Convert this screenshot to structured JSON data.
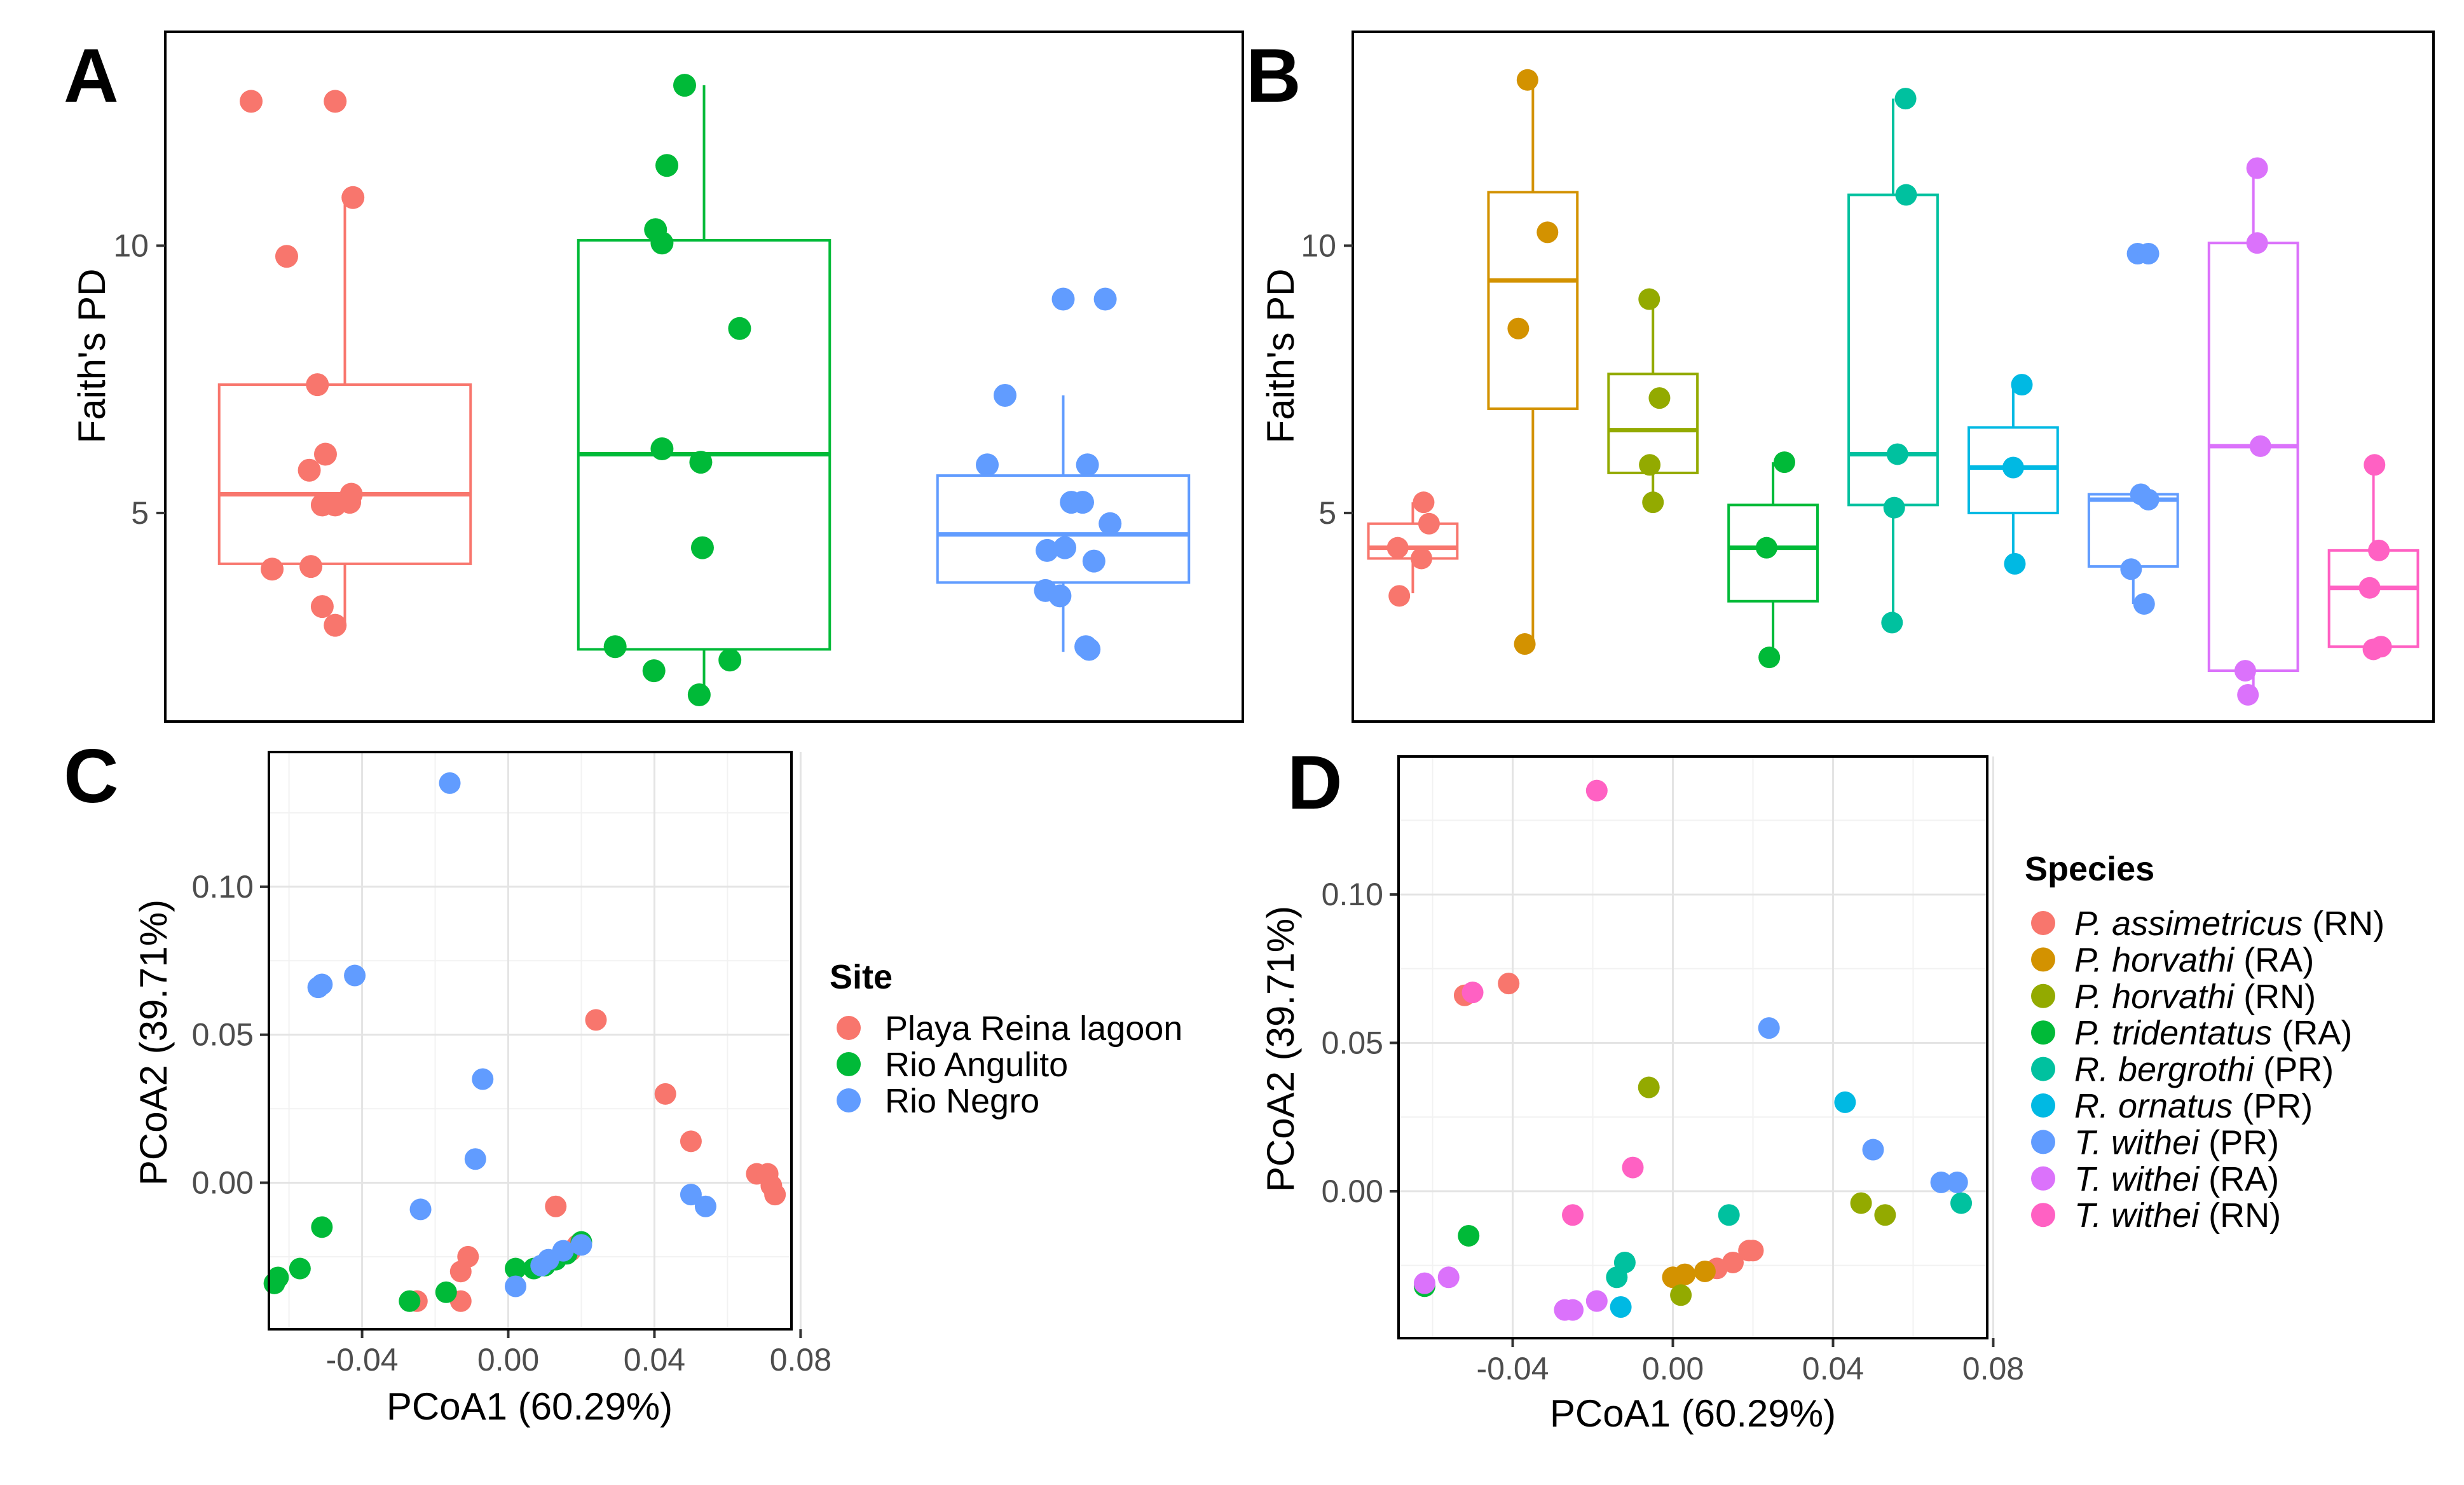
{
  "panels": {
    "a": "A",
    "b": "B",
    "c": "C",
    "d": "D"
  },
  "colors": {
    "site": {
      "Playa Reina lagoon": "#F8766D",
      "Rio Angulito": "#00BA38",
      "Rio Negro": "#619CFF"
    },
    "species": [
      "#F8766D",
      "#D39200",
      "#93AA00",
      "#00BA38",
      "#00C19F",
      "#00B9E3",
      "#619CFF",
      "#DB72FB",
      "#FF61C3"
    ]
  },
  "legends": {
    "site": {
      "title": "Site",
      "items": [
        "Playa Reina lagoon",
        "Rio Angulito",
        "Rio Negro"
      ]
    },
    "species": {
      "title": "Species",
      "items": [
        {
          "name": "P. assimetricus",
          "site": " (RN)"
        },
        {
          "name": "P. horvathi",
          "site": " (RA)"
        },
        {
          "name": "P. horvathi",
          "site": " (RN)"
        },
        {
          "name": "P. tridentatus",
          "site": " (RA)"
        },
        {
          "name": "R. bergrothi",
          "site": " (PR)"
        },
        {
          "name": "R. ornatus",
          "site": " (PR)"
        },
        {
          "name": "T. withei",
          "site": " (PR)"
        },
        {
          "name": "T. withei",
          "site": " (RA)"
        },
        {
          "name": "T. withei",
          "site": " (RN)"
        }
      ]
    }
  },
  "chart_data": [
    {
      "id": "A",
      "type": "box",
      "xlabel": "",
      "ylabel": "Faith's PD",
      "ylim": [
        1.1,
        14.0
      ],
      "yticks": [
        5,
        10
      ],
      "groups": [
        {
          "name": "Playa Reina lagoon",
          "color": "#F8766D",
          "box": {
            "q1": 4.05,
            "median": 5.35,
            "q3": 7.4,
            "wlo": 2.9,
            "whi": 10.9
          },
          "points": [
            [
              -0.58,
              12.7
            ],
            [
              -0.06,
              12.7
            ],
            [
              0.05,
              10.9
            ],
            [
              -0.36,
              9.8
            ],
            [
              -0.17,
              7.4
            ],
            [
              -0.12,
              6.1
            ],
            [
              -0.22,
              5.8
            ],
            [
              0.04,
              5.35
            ],
            [
              -0.14,
              5.15
            ],
            [
              0.03,
              5.2
            ],
            [
              -0.06,
              5.15
            ],
            [
              -0.45,
              3.95
            ],
            [
              -0.21,
              4.0
            ],
            [
              -0.14,
              3.25
            ],
            [
              -0.06,
              2.9
            ]
          ]
        },
        {
          "name": "Rio Angulito",
          "color": "#00BA38",
          "box": {
            "q1": 2.45,
            "median": 6.1,
            "q3": 10.1,
            "wlo": 1.5,
            "whi": 13.0
          },
          "points": [
            [
              -0.12,
              13.0
            ],
            [
              -0.23,
              11.5
            ],
            [
              -0.3,
              10.3
            ],
            [
              -0.26,
              10.05
            ],
            [
              0.22,
              8.45
            ],
            [
              -0.26,
              6.2
            ],
            [
              -0.02,
              5.95
            ],
            [
              -0.01,
              4.35
            ],
            [
              -0.55,
              2.5
            ],
            [
              -0.31,
              2.05
            ],
            [
              -0.03,
              1.6
            ],
            [
              0.16,
              2.25
            ]
          ]
        },
        {
          "name": "Rio Negro",
          "color": "#619CFF",
          "box": {
            "q1": 3.7,
            "median": 4.6,
            "q3": 5.7,
            "wlo": 2.4,
            "whi": 7.2
          },
          "points": [
            [
              0.0,
              9.0
            ],
            [
              0.26,
              9.0
            ],
            [
              -0.36,
              7.2
            ],
            [
              -0.47,
              5.9
            ],
            [
              0.15,
              5.9
            ],
            [
              0.05,
              5.2
            ],
            [
              0.12,
              5.2
            ],
            [
              0.29,
              4.8
            ],
            [
              -0.1,
              4.3
            ],
            [
              0.01,
              4.35
            ],
            [
              0.19,
              4.1
            ],
            [
              -0.11,
              3.55
            ],
            [
              -0.02,
              3.45
            ],
            [
              0.14,
              2.5
            ],
            [
              0.16,
              2.45
            ]
          ]
        }
      ]
    },
    {
      "id": "B",
      "type": "box",
      "xlabel": "",
      "ylabel": "Faith's PD",
      "ylim": [
        1.1,
        14.0
      ],
      "yticks": [
        5,
        10
      ],
      "groups": [
        {
          "name": "P. assimetricus (RN)",
          "color": "#F8766D",
          "box": {
            "q1": 4.15,
            "median": 4.35,
            "q3": 4.8,
            "wlo": 3.5,
            "whi": 5.2
          },
          "points": [
            [
              -0.28,
              4.35
            ],
            [
              0.2,
              5.2
            ],
            [
              0.3,
              4.8
            ],
            [
              0.16,
              4.15
            ],
            [
              -0.25,
              3.45
            ]
          ]
        },
        {
          "name": "P. horvathi (RA)",
          "color": "#D39200",
          "box": {
            "q1": 6.95,
            "median": 9.35,
            "q3": 11.0,
            "wlo": 2.5,
            "whi": 13.0
          },
          "points": [
            [
              -0.1,
              13.1
            ],
            [
              0.27,
              10.25
            ],
            [
              -0.27,
              8.45
            ],
            [
              -0.15,
              2.55
            ]
          ]
        },
        {
          "name": "P. horvathi (RN)",
          "color": "#93AA00",
          "box": {
            "q1": 5.75,
            "median": 6.55,
            "q3": 7.6,
            "wlo": 5.2,
            "whi": 9.0
          },
          "points": [
            [
              -0.07,
              9.0
            ],
            [
              0.12,
              7.15
            ],
            [
              -0.06,
              5.9
            ],
            [
              0.0,
              5.2
            ]
          ]
        },
        {
          "name": "P. tridentatus (RA)",
          "color": "#00BA38",
          "box": {
            "q1": 3.35,
            "median": 4.35,
            "q3": 5.15,
            "wlo": 2.3,
            "whi": 5.95
          },
          "points": [
            [
              0.21,
              5.95
            ],
            [
              -0.12,
              4.35
            ],
            [
              -0.07,
              2.3
            ]
          ]
        },
        {
          "name": "R. bergrothi (PR)",
          "color": "#00C19F",
          "box": {
            "q1": 5.15,
            "median": 6.1,
            "q3": 10.95,
            "wlo": 2.95,
            "whi": 12.75
          },
          "points": [
            [
              0.23,
              12.75
            ],
            [
              0.24,
              10.95
            ],
            [
              0.08,
              6.1
            ],
            [
              0.02,
              5.1
            ],
            [
              -0.02,
              2.95
            ]
          ]
        },
        {
          "name": "R. ornatus (PR)",
          "color": "#00B9E3",
          "box": {
            "q1": 5.0,
            "median": 5.85,
            "q3": 6.6,
            "wlo": 4.1,
            "whi": 7.4
          },
          "points": [
            [
              0.16,
              7.4
            ],
            [
              0.0,
              5.85
            ],
            [
              0.03,
              4.05
            ]
          ]
        },
        {
          "name": "T. withei (PR)",
          "color": "#619CFF",
          "box": {
            "q1": 4.0,
            "median": 5.25,
            "q3": 5.35,
            "wlo": 3.3,
            "whi": 5.4
          },
          "points": [
            [
              0.08,
              9.85
            ],
            [
              0.28,
              9.85
            ],
            [
              0.14,
              5.35
            ],
            [
              0.28,
              5.25
            ],
            [
              -0.04,
              3.95
            ],
            [
              0.2,
              3.3
            ]
          ]
        },
        {
          "name": "T. withei (RA)",
          "color": "#DB72FB",
          "box": {
            "q1": 2.05,
            "median": 6.25,
            "q3": 10.05,
            "wlo": 1.5,
            "whi": 11.45
          },
          "points": [
            [
              0.07,
              11.45
            ],
            [
              0.07,
              10.05
            ],
            [
              0.13,
              6.25
            ],
            [
              -0.15,
              2.05
            ],
            [
              -0.1,
              1.6
            ]
          ]
        },
        {
          "name": "T. withei (RN)",
          "color": "#FF61C3",
          "box": {
            "q1": 2.5,
            "median": 3.6,
            "q3": 4.3,
            "wlo": 2.5,
            "whi": 5.9
          },
          "points": [
            [
              0.02,
              5.9
            ],
            [
              0.1,
              4.3
            ],
            [
              -0.07,
              3.6
            ],
            [
              0.0,
              2.45
            ],
            [
              0.14,
              2.5
            ]
          ]
        }
      ]
    },
    {
      "id": "C",
      "type": "scatter",
      "xlabel": "PCoA1 (60.29%)",
      "ylabel": "PCoA2 (39.71%)",
      "xlim": [
        -0.0655,
        0.0775
      ],
      "ylim": [
        -0.0495,
        0.1455
      ],
      "xticks": [
        -0.04,
        0.0,
        0.04,
        0.08
      ],
      "xtick_labels": [
        "-0.04",
        "0.00",
        "0.04",
        "0.08"
      ],
      "yticks": [
        0.0,
        0.05,
        0.1
      ],
      "ytick_labels": [
        "0.00",
        "0.05",
        "0.10"
      ],
      "grid": true,
      "series": [
        {
          "name": "Playa Reina lagoon",
          "color": "#F8766D",
          "points": [
            [
              0.024,
              0.055
            ],
            [
              0.043,
              0.03
            ],
            [
              0.05,
              0.014
            ],
            [
              0.068,
              0.003
            ],
            [
              0.071,
              0.003
            ],
            [
              0.072,
              -0.001
            ],
            [
              0.073,
              -0.004
            ],
            [
              0.013,
              -0.008
            ],
            [
              -0.011,
              -0.025
            ],
            [
              -0.013,
              -0.03
            ],
            [
              0.017,
              -0.023
            ],
            [
              0.019,
              -0.021
            ],
            [
              -0.013,
              -0.04
            ],
            [
              -0.025,
              -0.04
            ]
          ]
        },
        {
          "name": "Rio Angulito",
          "color": "#00BA38",
          "points": [
            [
              -0.051,
              -0.015
            ],
            [
              -0.057,
              -0.029
            ],
            [
              -0.063,
              -0.032
            ],
            [
              -0.064,
              -0.034
            ],
            [
              -0.027,
              -0.04
            ],
            [
              -0.017,
              -0.037
            ],
            [
              0.002,
              -0.029
            ],
            [
              0.007,
              -0.029
            ],
            [
              0.01,
              -0.028
            ],
            [
              0.013,
              -0.026
            ],
            [
              0.016,
              -0.024
            ],
            [
              0.02,
              -0.02
            ]
          ]
        },
        {
          "name": "Rio Negro",
          "color": "#619CFF",
          "points": [
            [
              -0.016,
              0.135
            ],
            [
              -0.042,
              0.07
            ],
            [
              -0.051,
              0.067
            ],
            [
              -0.052,
              0.066
            ],
            [
              -0.007,
              0.035
            ],
            [
              -0.009,
              0.008
            ],
            [
              -0.024,
              -0.009
            ],
            [
              0.05,
              -0.004
            ],
            [
              0.054,
              -0.008
            ],
            [
              0.015,
              -0.023
            ],
            [
              0.011,
              -0.026
            ],
            [
              0.002,
              -0.035
            ],
            [
              0.009,
              -0.028
            ],
            [
              0.02,
              -0.021
            ]
          ]
        }
      ]
    },
    {
      "id": "D",
      "type": "scatter",
      "xlabel": "PCoA1 (60.29%)",
      "ylabel": "PCoA2 (39.71%)",
      "xlim": [
        -0.0685,
        0.0785
      ],
      "ylim": [
        -0.0495,
        0.1465
      ],
      "xticks": [
        -0.04,
        0.0,
        0.04,
        0.08
      ],
      "xtick_labels": [
        "-0.04",
        "0.00",
        "0.04",
        "0.08"
      ],
      "yticks": [
        0.0,
        0.05,
        0.1
      ],
      "ytick_labels": [
        "0.00",
        "0.05",
        "0.10"
      ],
      "grid": true,
      "series": [
        {
          "name": "P. assimetricus (RN)",
          "color": "#F8766D",
          "points": [
            [
              -0.041,
              0.07
            ],
            [
              -0.052,
              0.066
            ],
            [
              0.019,
              -0.02
            ],
            [
              0.02,
              -0.02
            ],
            [
              0.015,
              -0.024
            ],
            [
              0.011,
              -0.026
            ]
          ]
        },
        {
          "name": "P. horvathi (RA)",
          "color": "#D39200",
          "points": [
            [
              0.008,
              -0.027
            ],
            [
              0.003,
              -0.028
            ],
            [
              0.0,
              -0.029
            ]
          ]
        },
        {
          "name": "P. horvathi (RN)",
          "color": "#93AA00",
          "points": [
            [
              -0.006,
              0.035
            ],
            [
              0.047,
              -0.004
            ],
            [
              0.053,
              -0.008
            ],
            [
              0.002,
              -0.035
            ]
          ]
        },
        {
          "name": "P. tridentatus (RA)",
          "color": "#00BA38",
          "points": [
            [
              -0.051,
              -0.015
            ],
            [
              -0.062,
              -0.032
            ]
          ]
        },
        {
          "name": "R. bergrothi (PR)",
          "color": "#00C19F",
          "points": [
            [
              0.014,
              -0.008
            ],
            [
              0.072,
              -0.004
            ],
            [
              -0.012,
              -0.024
            ],
            [
              -0.014,
              -0.029
            ]
          ]
        },
        {
          "name": "R. ornatus (PR)",
          "color": "#00B9E3",
          "points": [
            [
              0.043,
              0.03
            ],
            [
              -0.013,
              -0.039
            ]
          ]
        },
        {
          "name": "T. withei (PR)",
          "color": "#619CFF",
          "points": [
            [
              0.024,
              0.055
            ],
            [
              0.05,
              0.014
            ],
            [
              0.067,
              0.003
            ],
            [
              0.071,
              0.003
            ]
          ]
        },
        {
          "name": "T. withei (RA)",
          "color": "#DB72FB",
          "points": [
            [
              -0.056,
              -0.029
            ],
            [
              -0.062,
              -0.031
            ],
            [
              -0.019,
              -0.037
            ],
            [
              -0.025,
              -0.04
            ],
            [
              -0.027,
              -0.04
            ]
          ]
        },
        {
          "name": "T. withei (RN)",
          "color": "#FF61C3",
          "points": [
            [
              -0.019,
              0.135
            ],
            [
              -0.05,
              0.067
            ],
            [
              -0.01,
              0.008
            ],
            [
              -0.025,
              -0.008
            ]
          ]
        }
      ]
    }
  ]
}
